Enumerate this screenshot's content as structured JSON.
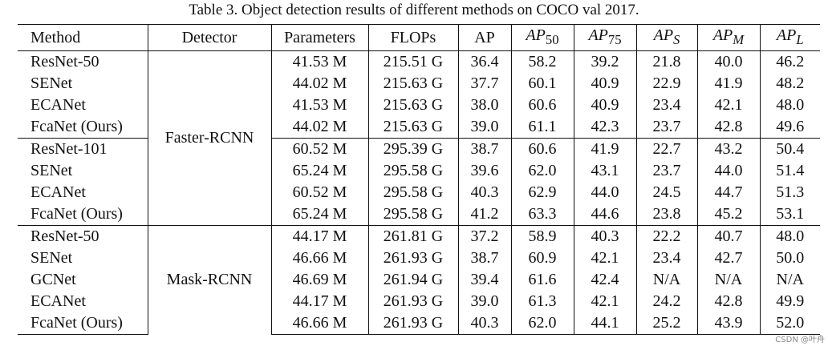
{
  "caption": "Table 3. Object detection results of different methods on COCO val 2017.",
  "headers": {
    "method": "Method",
    "detector": "Detector",
    "params": "Parameters",
    "flops": "FLOPs",
    "ap": "AP",
    "ap50": {
      "base": "AP",
      "sub": "50"
    },
    "ap75": {
      "base": "AP",
      "sub": "75"
    },
    "aps": {
      "base": "AP",
      "sub": "S"
    },
    "apm": {
      "base": "AP",
      "sub": "M"
    },
    "apl": {
      "base": "AP",
      "sub": "L"
    }
  },
  "groups": [
    {
      "detector": "Faster-RCNN",
      "rows": [
        {
          "method": "ResNet-50",
          "params": "41.53 M",
          "flops": "215.51 G",
          "ap": "36.4",
          "ap50": "58.2",
          "ap75": "39.2",
          "aps": "21.8",
          "apm": "40.0",
          "apl": "46.2"
        },
        {
          "method": "SENet",
          "params": "44.02 M",
          "flops": "215.63 G",
          "ap": "37.7",
          "ap50": "60.1",
          "ap75": "40.9",
          "aps": "22.9",
          "apm": "41.9",
          "apl": "48.2"
        },
        {
          "method": "ECANet",
          "params": "41.53 M",
          "flops": "215.63 G",
          "ap": "38.0",
          "ap50": "60.6",
          "ap75": "40.9",
          "aps": "23.4",
          "apm": "42.1",
          "apl": "48.0"
        },
        {
          "method": "FcaNet (Ours)",
          "params": "44.02 M",
          "flops": "215.63 G",
          "ap": "39.0",
          "ap50": "61.1",
          "ap75": "42.3",
          "aps": "23.7",
          "apm": "42.8",
          "apl": "49.6"
        },
        {
          "method": "ResNet-101",
          "params": "60.52 M",
          "flops": "295.39 G",
          "ap": "38.7",
          "ap50": "60.6",
          "ap75": "41.9",
          "aps": "22.7",
          "apm": "43.2",
          "apl": "50.4"
        },
        {
          "method": "SENet",
          "params": "65.24 M",
          "flops": "295.58 G",
          "ap": "39.6",
          "ap50": "62.0",
          "ap75": "43.1",
          "aps": "23.7",
          "apm": "44.0",
          "apl": "51.4"
        },
        {
          "method": "ECANet",
          "params": "60.52 M",
          "flops": "295.58 G",
          "ap": "40.3",
          "ap50": "62.9",
          "ap75": "44.0",
          "aps": "24.5",
          "apm": "44.7",
          "apl": "51.3"
        },
        {
          "method": "FcaNet (Ours)",
          "params": "65.24 M",
          "flops": "295.58 G",
          "ap": "41.2",
          "ap50": "63.3",
          "ap75": "44.6",
          "aps": "23.8",
          "apm": "45.2",
          "apl": "53.1"
        }
      ]
    },
    {
      "detector": "Mask-RCNN",
      "rows": [
        {
          "method": "ResNet-50",
          "params": "44.17 M",
          "flops": "261.81 G",
          "ap": "37.2",
          "ap50": "58.9",
          "ap75": "40.3",
          "aps": "22.2",
          "apm": "40.7",
          "apl": "48.0"
        },
        {
          "method": "SENet",
          "params": "46.66 M",
          "flops": "261.93 G",
          "ap": "38.7",
          "ap50": "60.9",
          "ap75": "42.1",
          "aps": "23.4",
          "apm": "42.7",
          "apl": "50.0"
        },
        {
          "method": "GCNet",
          "params": "46.69 M",
          "flops": "261.94 G",
          "ap": "39.4",
          "ap50": "61.6",
          "ap75": "42.4",
          "aps": "N/A",
          "apm": "N/A",
          "apl": "N/A"
        },
        {
          "method": "ECANet",
          "params": "44.17 M",
          "flops": "261.93 G",
          "ap": "39.0",
          "ap50": "61.3",
          "ap75": "42.1",
          "aps": "24.2",
          "apm": "42.8",
          "apl": "49.9"
        },
        {
          "method": "FcaNet (Ours)",
          "params": "46.66 M",
          "flops": "261.93 G",
          "ap": "40.3",
          "ap50": "62.0",
          "ap75": "44.1",
          "aps": "25.2",
          "apm": "43.9",
          "apl": "52.0"
        }
      ]
    }
  ],
  "watermark": "CSDN @叶舟"
}
